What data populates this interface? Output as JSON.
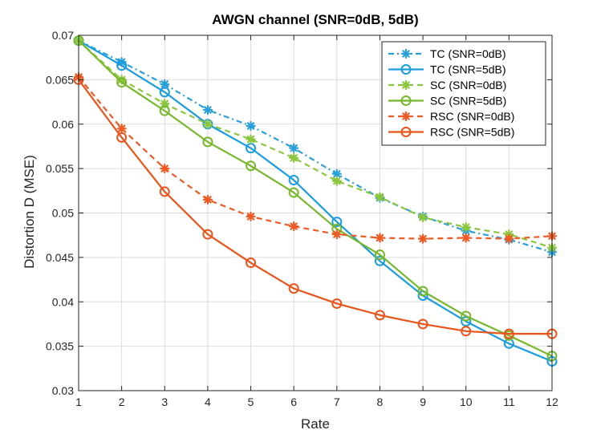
{
  "chart_data": {
    "type": "line",
    "title": "AWGN channel (SNR=0dB, 5dB)",
    "xlabel": "Rate",
    "ylabel": "Distortion D (MSE)",
    "xlim": [
      1,
      12
    ],
    "ylim": [
      0.03,
      0.07
    ],
    "grid": true,
    "legend_position": "top-right",
    "x": [
      1,
      2,
      3,
      4,
      5,
      6,
      7,
      8,
      9,
      10,
      11,
      12
    ],
    "x_ticks": [
      "1",
      "2",
      "3",
      "4",
      "5",
      "6",
      "7",
      "8",
      "9",
      "10",
      "11",
      "12"
    ],
    "y_ticks": [
      {
        "value": 0.03,
        "label": "0.03"
      },
      {
        "value": 0.035,
        "label": "0.035"
      },
      {
        "value": 0.04,
        "label": "0.04"
      },
      {
        "value": 0.045,
        "label": "0.045"
      },
      {
        "value": 0.05,
        "label": "0.05"
      },
      {
        "value": 0.055,
        "label": "0.055"
      },
      {
        "value": 0.06,
        "label": "0.06"
      },
      {
        "value": 0.065,
        "label": "0.065"
      },
      {
        "value": 0.07,
        "label": "0.07"
      }
    ],
    "series": [
      {
        "name": "TC (SNR=0dB)",
        "color": "#2aa0d8",
        "dash": "dashdot",
        "marker": "asterisk",
        "values": [
          0.0694,
          0.067,
          0.0645,
          0.0616,
          0.0598,
          0.0573,
          0.0544,
          0.0517,
          0.0496,
          0.048,
          0.047,
          0.0456
        ]
      },
      {
        "name": "TC (SNR=5dB)",
        "color": "#1a9ce0",
        "dash": "solid",
        "marker": "circle",
        "values": [
          0.0694,
          0.0666,
          0.0636,
          0.06,
          0.0573,
          0.0537,
          0.049,
          0.0446,
          0.0407,
          0.0378,
          0.0353,
          0.0333
        ]
      },
      {
        "name": "SC (SNR=0dB)",
        "color": "#8cc63e",
        "dash": "dashed",
        "marker": "asterisk",
        "values": [
          0.0694,
          0.065,
          0.0623,
          0.06,
          0.0583,
          0.0562,
          0.0536,
          0.0518,
          0.0495,
          0.0484,
          0.0476,
          0.0461
        ]
      },
      {
        "name": "SC (SNR=5dB)",
        "color": "#77b82a",
        "dash": "solid",
        "marker": "circle",
        "values": [
          0.0694,
          0.0647,
          0.0615,
          0.058,
          0.0553,
          0.0523,
          0.0482,
          0.0453,
          0.0412,
          0.0384,
          0.0362,
          0.0339
        ]
      },
      {
        "name": "RSC (SNR=0dB)",
        "color": "#ee5a24",
        "dash": "dashed",
        "marker": "asterisk",
        "values": [
          0.0653,
          0.0595,
          0.055,
          0.0515,
          0.0496,
          0.0485,
          0.0476,
          0.0472,
          0.0471,
          0.0472,
          0.0471,
          0.0474
        ]
      },
      {
        "name": "RSC (SNR=5dB)",
        "color": "#e8541a",
        "dash": "solid",
        "marker": "circle",
        "values": [
          0.065,
          0.0585,
          0.0524,
          0.0476,
          0.0444,
          0.0415,
          0.0398,
          0.0385,
          0.0375,
          0.0367,
          0.0364,
          0.0364
        ]
      }
    ]
  }
}
